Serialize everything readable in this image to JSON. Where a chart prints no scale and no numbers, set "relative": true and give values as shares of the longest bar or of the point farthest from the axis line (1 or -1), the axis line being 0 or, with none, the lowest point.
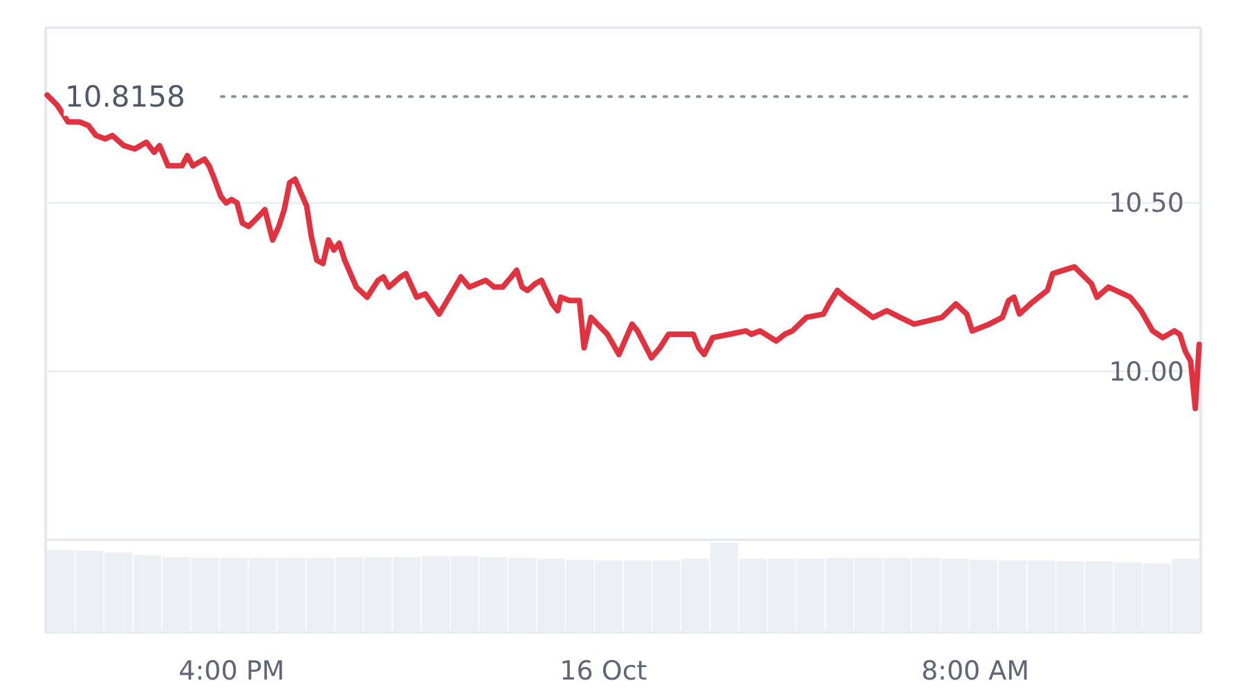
{
  "chart_data": [
    {
      "type": "line",
      "grid": "y",
      "line_style": "solid",
      "marker": "none",
      "xlim": [
        "--10-15T12:00",
        "--10-16T12:51"
      ],
      "ylim": [
        9.5,
        11.02
      ],
      "xticks": [
        {
          "value": "--10-15T16:00",
          "label": "4:00 PM"
        },
        {
          "value": "--10-16T00:00",
          "label": "16 Oct"
        },
        {
          "value": "--10-16T08:00",
          "label": "8:00 AM"
        }
      ],
      "yticks": [
        {
          "value": 10,
          "label": "10.00"
        },
        {
          "value": 10.5,
          "label": "10.50"
        }
      ],
      "ref_lines": [
        {
          "axis": "y",
          "value": 10.8158,
          "label": "10.8158",
          "line_style": "dotted",
          "color": "#8a919c"
        }
      ],
      "series": [
        {
          "color": "#e0323f",
          "x": [
            "--10-15T12:02",
            "--10-15T12:15",
            "--10-15T12:29",
            "--10-15T12:44",
            "--10-15T12:55",
            "--10-15T13:05",
            "--10-15T13:17",
            "--10-15T13:26",
            "--10-15T13:41",
            "--10-15T13:55",
            "--10-15T14:10",
            "--10-15T14:20",
            "--10-15T14:27",
            "--10-15T14:38",
            "--10-15T14:56",
            "--10-15T15:03",
            "--10-15T15:10",
            "--10-15T15:25",
            "--10-15T15:31",
            "--10-15T15:38",
            "--10-15T15:46",
            "--10-15T15:53",
            "--10-15T16:00",
            "--10-15T16:07",
            "--10-15T16:14",
            "--10-15T16:22",
            "--10-15T16:35",
            "--10-15T16:43",
            "--10-15T16:53",
            "--10-15T17:01",
            "--10-15T17:08",
            "--10-15T17:15",
            "--10-15T17:22",
            "--10-15T17:37",
            "--10-15T17:43",
            "--10-15T17:50",
            "--10-15T17:58",
            "--10-15T18:05",
            "--10-15T18:12",
            "--10-15T18:19",
            "--10-15T18:26",
            "--10-15T18:41",
            "--10-15T18:55",
            "--10-15T19:09",
            "--10-15T19:16",
            "--10-15T19:23",
            "--10-15T19:38",
            "--10-15T19:45",
            "--10-15T19:59",
            "--10-15T20:10",
            "--10-15T20:28",
            "--10-15T20:46",
            "--10-15T20:56",
            "--10-15T21:07",
            "--10-15T21:28",
            "--10-15T21:39",
            "--10-15T21:50",
            "--10-15T22:01",
            "--10-15T22:08",
            "--10-15T22:15",
            "--10-15T22:22",
            "--10-15T22:32",
            "--10-15T22:40",
            "--10-15T22:54",
            "--10-15T23:01",
            "--10-15T23:05",
            "--10-15T23:16",
            "--10-15T23:29",
            "--10-15T23:35",
            "--10-15T23:44",
            "--10-16T00:05",
            "--10-16T00:20",
            "--10-16T00:37",
            "--10-16T00:44",
            "--10-16T01:02",
            "--10-16T01:13",
            "--10-16T01:24",
            "--10-16T01:45",
            "--10-16T01:56",
            "--10-16T02:03",
            "--10-16T02:10",
            "--10-16T02:21",
            "--10-16T02:43",
            "--10-16T03:04",
            "--10-16T03:11",
            "--10-16T03:22",
            "--10-16T03:43",
            "--10-16T03:54",
            "--10-16T04:04",
            "--10-16T04:22",
            "--10-16T04:44",
            "--10-16T04:51",
            "--10-16T05:02",
            "--10-16T05:12",
            "--10-16T05:30",
            "--10-16T05:48",
            "--10-16T06:06",
            "--10-16T06:23",
            "--10-16T06:41",
            "--10-16T06:59",
            "--10-16T07:17",
            "--10-16T07:35",
            "--10-16T07:49",
            "--10-16T07:56",
            "--10-16T08:18",
            "--10-16T08:35",
            "--10-16T08:43",
            "--10-16T08:50",
            "--10-16T08:57",
            "--10-16T09:11",
            "--10-16T09:33",
            "--10-16T09:40",
            "--10-16T10:08",
            "--10-16T10:30",
            "--10-16T10:37",
            "--10-16T10:52",
            "--10-16T11:20",
            "--10-16T11:34",
            "--10-16T11:49",
            "--10-16T12:02",
            "--10-16T12:17",
            "--10-16T12:24",
            "--10-16T12:31",
            "--10-16T12:38",
            "--10-16T12:44",
            "--10-16T12:49"
          ],
          "values": [
            10.82,
            10.79,
            10.74,
            10.74,
            10.73,
            10.7,
            10.69,
            10.7,
            10.67,
            10.66,
            10.68,
            10.65,
            10.67,
            10.61,
            10.61,
            10.64,
            10.61,
            10.63,
            10.61,
            10.57,
            10.52,
            10.5,
            10.51,
            10.5,
            10.44,
            10.43,
            10.46,
            10.48,
            10.39,
            10.43,
            10.48,
            10.56,
            10.57,
            10.49,
            10.4,
            10.33,
            10.32,
            10.39,
            10.36,
            10.38,
            10.33,
            10.25,
            10.22,
            10.27,
            10.28,
            10.25,
            10.28,
            10.29,
            10.22,
            10.23,
            10.17,
            10.24,
            10.28,
            10.25,
            10.27,
            10.25,
            10.25,
            10.28,
            10.3,
            10.25,
            10.24,
            10.26,
            10.27,
            10.2,
            10.18,
            10.22,
            10.21,
            10.21,
            10.07,
            10.16,
            10.11,
            10.05,
            10.14,
            10.12,
            10.04,
            10.07,
            10.11,
            10.11,
            10.11,
            10.07,
            10.05,
            10.1,
            10.11,
            10.12,
            10.11,
            10.12,
            10.09,
            10.11,
            10.12,
            10.16,
            10.17,
            10.2,
            10.24,
            10.22,
            10.19,
            10.16,
            10.18,
            10.16,
            10.14,
            10.15,
            10.16,
            10.2,
            10.17,
            10.12,
            10.14,
            10.16,
            10.21,
            10.22,
            10.17,
            10.2,
            10.24,
            10.29,
            10.31,
            10.26,
            10.22,
            10.25,
            10.22,
            10.18,
            10.12,
            10.1,
            10.12,
            10.11,
            10.06,
            10.03,
            9.89,
            10.08
          ]
        }
      ]
    },
    {
      "type": "bar",
      "relative": true,
      "categories": [
        null,
        null,
        null,
        null,
        null,
        null,
        null,
        null,
        null,
        null,
        null,
        null,
        null,
        null,
        null,
        null,
        null,
        null,
        null,
        null,
        null,
        null,
        null,
        null,
        null,
        null,
        null,
        null,
        null,
        null,
        null,
        null,
        null,
        null,
        null,
        null,
        null,
        null,
        null,
        null
      ],
      "series": [
        {
          "color": "#eceff3",
          "values": [
            0.92,
            0.91,
            0.89,
            0.86,
            0.84,
            0.83,
            0.83,
            0.83,
            0.83,
            0.83,
            0.84,
            0.84,
            0.84,
            0.85,
            0.85,
            0.84,
            0.83,
            0.82,
            0.81,
            0.8,
            0.8,
            0.8,
            0.82,
            1,
            0.82,
            0.82,
            0.82,
            0.83,
            0.83,
            0.83,
            0.83,
            0.82,
            0.81,
            0.8,
            0.8,
            0.79,
            0.79,
            0.78,
            0.77,
            0.82
          ]
        }
      ]
    }
  ]
}
